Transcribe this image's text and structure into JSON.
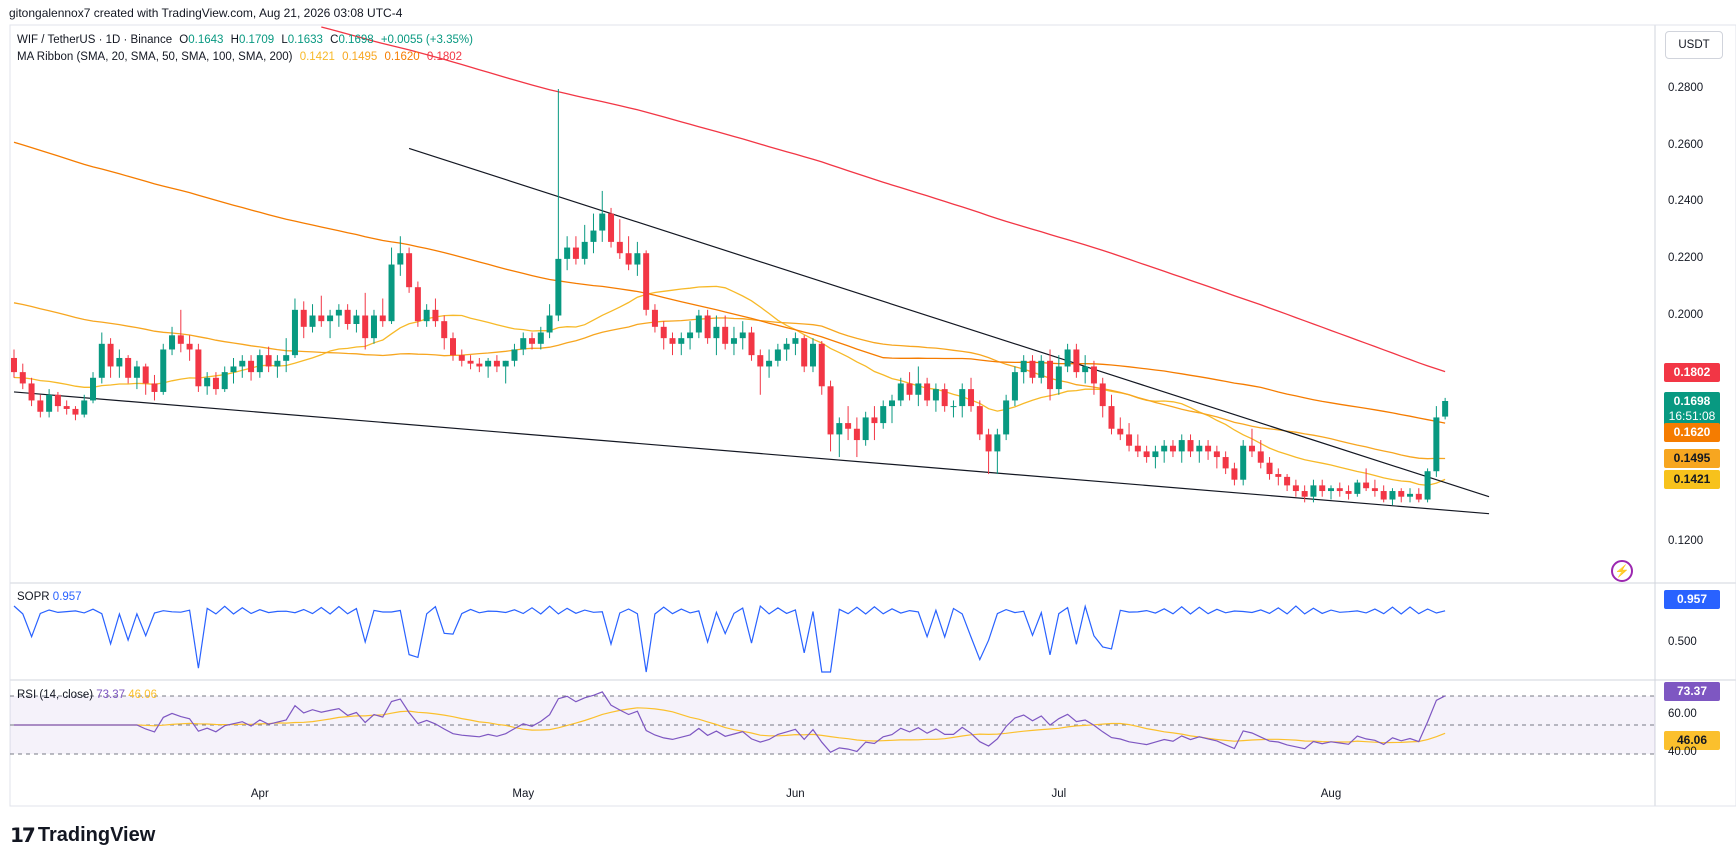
{
  "header": {
    "credit": "gitongalennox7 created with TradingView.com, Aug 21, 2026 03:08 UTC-4"
  },
  "legend": {
    "symbol": "WIF / TetherUS · 1D · Binance",
    "o_label": "O",
    "o_value": "0.1643",
    "h_label": "H",
    "h_value": "0.1709",
    "l_label": "L",
    "l_value": "0.1633",
    "c_label": "C",
    "c_value": "0.1698",
    "change": "+0.0055 (+3.35%)",
    "ma_title": "MA Ribbon (SMA, 20, SMA, 50, SMA, 100, SMA, 200)",
    "ma20": "0.1421",
    "ma50": "0.1495",
    "ma100": "0.1620",
    "ma200": "0.1802"
  },
  "currency_button": "USDT",
  "price_tags": {
    "ma200": "0.1802",
    "last": "0.1698",
    "countdown": "16:51:08",
    "ma100": "0.1620",
    "ma50": "0.1495",
    "ma20": "0.1421"
  },
  "sopr_pane": {
    "title": "SOPR",
    "value": "0.957",
    "tag": "0.957",
    "axis": "0.500"
  },
  "rsi_pane": {
    "title": "RSI (14, close)",
    "value": "73.37",
    "ma_value": "46.06",
    "tag": "73.37",
    "ma_tag": "46.06",
    "axis_60": "60.00",
    "axis_40": "40.00"
  },
  "footer": {
    "brand": "TradingView"
  },
  "colors": {
    "up": "#089981",
    "down": "#f23645",
    "ma20": "#f7b928",
    "ma50": "#f7a620",
    "ma100": "#f57c00",
    "ma200": "#f23645",
    "sopr": "#2962ff",
    "rsi": "#7e57c2",
    "rsi_ma": "#fbc02d"
  },
  "chart_data": [
    {
      "type": "line",
      "title": "WIF / TetherUS · 1D · Binance",
      "y_ticks": [
        "0.2800",
        "0.2600",
        "0.2400",
        "0.2200",
        "0.2000",
        "0.1200"
      ],
      "x_ticks": [
        "Apr",
        "May",
        "Jun",
        "Jul",
        "Aug"
      ],
      "ylim": [
        0.105,
        0.295
      ],
      "candles_ohlc_daily_from_mar4": [
        [
          0.185,
          0.188,
          0.178,
          0.18
        ],
        [
          0.18,
          0.183,
          0.174,
          0.176
        ],
        [
          0.176,
          0.178,
          0.168,
          0.17
        ],
        [
          0.17,
          0.172,
          0.164,
          0.166
        ],
        [
          0.166,
          0.174,
          0.164,
          0.172
        ],
        [
          0.172,
          0.173,
          0.166,
          0.168
        ],
        [
          0.168,
          0.17,
          0.165,
          0.167
        ],
        [
          0.167,
          0.168,
          0.163,
          0.165
        ],
        [
          0.165,
          0.172,
          0.164,
          0.17
        ],
        [
          0.17,
          0.18,
          0.169,
          0.178
        ],
        [
          0.178,
          0.194,
          0.176,
          0.19
        ],
        [
          0.19,
          0.192,
          0.178,
          0.182
        ],
        [
          0.182,
          0.188,
          0.178,
          0.185
        ],
        [
          0.185,
          0.186,
          0.176,
          0.178
        ],
        [
          0.178,
          0.184,
          0.174,
          0.182
        ],
        [
          0.182,
          0.183,
          0.172,
          0.176
        ],
        [
          0.176,
          0.179,
          0.17,
          0.173
        ],
        [
          0.173,
          0.19,
          0.172,
          0.188
        ],
        [
          0.188,
          0.196,
          0.186,
          0.193
        ],
        [
          0.193,
          0.202,
          0.187,
          0.19
        ],
        [
          0.19,
          0.193,
          0.184,
          0.188
        ],
        [
          0.188,
          0.19,
          0.173,
          0.175
        ],
        [
          0.175,
          0.18,
          0.172,
          0.178
        ],
        [
          0.178,
          0.18,
          0.172,
          0.174
        ],
        [
          0.174,
          0.182,
          0.173,
          0.18
        ],
        [
          0.18,
          0.185,
          0.176,
          0.182
        ],
        [
          0.182,
          0.186,
          0.178,
          0.184
        ],
        [
          0.184,
          0.186,
          0.177,
          0.18
        ],
        [
          0.18,
          0.188,
          0.178,
          0.186
        ],
        [
          0.186,
          0.189,
          0.18,
          0.182
        ],
        [
          0.182,
          0.186,
          0.178,
          0.184
        ],
        [
          0.184,
          0.192,
          0.18,
          0.186
        ],
        [
          0.186,
          0.206,
          0.185,
          0.202
        ],
        [
          0.202,
          0.205,
          0.192,
          0.196
        ],
        [
          0.196,
          0.204,
          0.194,
          0.2
        ],
        [
          0.2,
          0.207,
          0.196,
          0.198
        ],
        [
          0.198,
          0.202,
          0.192,
          0.2
        ],
        [
          0.2,
          0.204,
          0.196,
          0.202
        ],
        [
          0.202,
          0.204,
          0.195,
          0.197
        ],
        [
          0.197,
          0.202,
          0.194,
          0.2
        ],
        [
          0.2,
          0.208,
          0.188,
          0.192
        ],
        [
          0.192,
          0.202,
          0.19,
          0.2
        ],
        [
          0.2,
          0.206,
          0.196,
          0.198
        ],
        [
          0.198,
          0.224,
          0.197,
          0.218
        ],
        [
          0.218,
          0.228,
          0.214,
          0.222
        ],
        [
          0.222,
          0.224,
          0.208,
          0.21
        ],
        [
          0.21,
          0.212,
          0.196,
          0.198
        ],
        [
          0.198,
          0.204,
          0.196,
          0.202
        ],
        [
          0.202,
          0.206,
          0.196,
          0.198
        ],
        [
          0.198,
          0.2,
          0.188,
          0.192
        ],
        [
          0.192,
          0.194,
          0.184,
          0.186
        ],
        [
          0.186,
          0.188,
          0.182,
          0.184
        ],
        [
          0.184,
          0.186,
          0.181,
          0.183
        ],
        [
          0.183,
          0.185,
          0.18,
          0.182
        ],
        [
          0.182,
          0.185,
          0.178,
          0.184
        ],
        [
          0.184,
          0.186,
          0.18,
          0.182
        ],
        [
          0.182,
          0.184,
          0.176,
          0.184
        ],
        [
          0.184,
          0.19,
          0.182,
          0.188
        ],
        [
          0.188,
          0.194,
          0.186,
          0.192
        ],
        [
          0.192,
          0.194,
          0.188,
          0.19
        ],
        [
          0.19,
          0.196,
          0.188,
          0.194
        ],
        [
          0.194,
          0.204,
          0.192,
          0.2
        ],
        [
          0.2,
          0.28,
          0.198,
          0.22
        ],
        [
          0.22,
          0.228,
          0.216,
          0.224
        ],
        [
          0.224,
          0.228,
          0.218,
          0.22
        ],
        [
          0.22,
          0.232,
          0.218,
          0.226
        ],
        [
          0.226,
          0.236,
          0.222,
          0.23
        ],
        [
          0.23,
          0.244,
          0.226,
          0.236
        ],
        [
          0.236,
          0.238,
          0.224,
          0.226
        ],
        [
          0.226,
          0.234,
          0.22,
          0.222
        ],
        [
          0.222,
          0.228,
          0.216,
          0.218
        ],
        [
          0.218,
          0.226,
          0.214,
          0.222
        ],
        [
          0.222,
          0.223,
          0.2,
          0.202
        ],
        [
          0.202,
          0.204,
          0.194,
          0.196
        ],
        [
          0.196,
          0.198,
          0.188,
          0.192
        ],
        [
          0.192,
          0.194,
          0.186,
          0.19
        ],
        [
          0.19,
          0.194,
          0.186,
          0.192
        ],
        [
          0.192,
          0.198,
          0.188,
          0.194
        ],
        [
          0.194,
          0.202,
          0.192,
          0.2
        ],
        [
          0.2,
          0.202,
          0.19,
          0.192
        ],
        [
          0.192,
          0.2,
          0.186,
          0.196
        ],
        [
          0.196,
          0.2,
          0.188,
          0.19
        ],
        [
          0.19,
          0.196,
          0.186,
          0.192
        ],
        [
          0.192,
          0.198,
          0.188,
          0.194
        ],
        [
          0.194,
          0.196,
          0.184,
          0.186
        ],
        [
          0.186,
          0.188,
          0.172,
          0.182
        ],
        [
          0.182,
          0.188,
          0.178,
          0.184
        ],
        [
          0.184,
          0.19,
          0.182,
          0.188
        ],
        [
          0.188,
          0.192,
          0.184,
          0.19
        ],
        [
          0.19,
          0.194,
          0.186,
          0.192
        ],
        [
          0.192,
          0.193,
          0.18,
          0.182
        ],
        [
          0.182,
          0.192,
          0.18,
          0.19
        ],
        [
          0.19,
          0.191,
          0.172,
          0.175
        ],
        [
          0.175,
          0.177,
          0.152,
          0.158
        ],
        [
          0.158,
          0.164,
          0.15,
          0.162
        ],
        [
          0.162,
          0.168,
          0.156,
          0.16
        ],
        [
          0.16,
          0.164,
          0.15,
          0.156
        ],
        [
          0.156,
          0.166,
          0.154,
          0.164
        ],
        [
          0.164,
          0.168,
          0.156,
          0.162
        ],
        [
          0.162,
          0.17,
          0.16,
          0.168
        ],
        [
          0.168,
          0.172,
          0.162,
          0.17
        ],
        [
          0.17,
          0.178,
          0.168,
          0.176
        ],
        [
          0.176,
          0.18,
          0.17,
          0.172
        ],
        [
          0.172,
          0.182,
          0.168,
          0.176
        ],
        [
          0.176,
          0.178,
          0.168,
          0.17
        ],
        [
          0.17,
          0.176,
          0.166,
          0.174
        ],
        [
          0.174,
          0.176,
          0.166,
          0.168
        ],
        [
          0.168,
          0.17,
          0.164,
          0.168
        ],
        [
          0.168,
          0.176,
          0.164,
          0.174
        ],
        [
          0.174,
          0.178,
          0.166,
          0.168
        ],
        [
          0.168,
          0.17,
          0.156,
          0.158
        ],
        [
          0.158,
          0.16,
          0.144,
          0.152
        ],
        [
          0.152,
          0.16,
          0.144,
          0.158
        ],
        [
          0.158,
          0.172,
          0.156,
          0.17
        ],
        [
          0.17,
          0.182,
          0.168,
          0.18
        ],
        [
          0.18,
          0.186,
          0.176,
          0.184
        ],
        [
          0.184,
          0.186,
          0.176,
          0.178
        ],
        [
          0.178,
          0.186,
          0.176,
          0.184
        ],
        [
          0.184,
          0.188,
          0.17,
          0.174
        ],
        [
          0.174,
          0.186,
          0.172,
          0.182
        ],
        [
          0.182,
          0.19,
          0.18,
          0.188
        ],
        [
          0.188,
          0.19,
          0.178,
          0.18
        ],
        [
          0.18,
          0.186,
          0.176,
          0.182
        ],
        [
          0.182,
          0.184,
          0.172,
          0.176
        ],
        [
          0.176,
          0.178,
          0.164,
          0.168
        ],
        [
          0.168,
          0.172,
          0.158,
          0.16
        ],
        [
          0.16,
          0.164,
          0.156,
          0.158
        ],
        [
          0.158,
          0.162,
          0.152,
          0.154
        ],
        [
          0.154,
          0.158,
          0.15,
          0.152
        ],
        [
          0.152,
          0.154,
          0.148,
          0.15
        ],
        [
          0.15,
          0.154,
          0.146,
          0.152
        ],
        [
          0.152,
          0.156,
          0.148,
          0.154
        ],
        [
          0.154,
          0.156,
          0.15,
          0.152
        ],
        [
          0.152,
          0.158,
          0.148,
          0.156
        ],
        [
          0.156,
          0.158,
          0.15,
          0.152
        ],
        [
          0.152,
          0.156,
          0.148,
          0.154
        ],
        [
          0.154,
          0.156,
          0.149,
          0.152
        ],
        [
          0.152,
          0.154,
          0.146,
          0.15
        ],
        [
          0.15,
          0.152,
          0.144,
          0.146
        ],
        [
          0.146,
          0.148,
          0.14,
          0.142
        ],
        [
          0.142,
          0.156,
          0.14,
          0.154
        ],
        [
          0.154,
          0.16,
          0.15,
          0.152
        ],
        [
          0.152,
          0.156,
          0.146,
          0.148
        ],
        [
          0.148,
          0.15,
          0.142,
          0.144
        ],
        [
          0.144,
          0.146,
          0.14,
          0.143
        ],
        [
          0.143,
          0.144,
          0.138,
          0.14
        ],
        [
          0.14,
          0.142,
          0.136,
          0.138
        ],
        [
          0.138,
          0.14,
          0.134,
          0.136
        ],
        [
          0.136,
          0.142,
          0.134,
          0.14
        ],
        [
          0.14,
          0.142,
          0.136,
          0.138
        ],
        [
          0.138,
          0.14,
          0.135,
          0.139
        ],
        [
          0.139,
          0.141,
          0.136,
          0.138
        ],
        [
          0.138,
          0.14,
          0.135,
          0.137
        ],
        [
          0.137,
          0.142,
          0.136,
          0.141
        ],
        [
          0.141,
          0.146,
          0.138,
          0.139
        ],
        [
          0.139,
          0.142,
          0.136,
          0.138
        ],
        [
          0.138,
          0.14,
          0.134,
          0.135
        ],
        [
          0.135,
          0.139,
          0.133,
          0.138
        ],
        [
          0.138,
          0.139,
          0.134,
          0.136
        ],
        [
          0.136,
          0.139,
          0.134,
          0.137
        ],
        [
          0.137,
          0.139,
          0.134,
          0.135
        ],
        [
          0.135,
          0.146,
          0.134,
          0.145
        ],
        [
          0.145,
          0.168,
          0.143,
          0.164
        ],
        [
          0.1643,
          0.1709,
          0.1633,
          0.1698
        ]
      ],
      "series": [
        {
          "name": "SMA 20",
          "last": 0.1421
        },
        {
          "name": "SMA 50",
          "last": 0.1495
        },
        {
          "name": "SMA 100",
          "last": 0.162
        },
        {
          "name": "SMA 200",
          "last": 0.1802
        }
      ],
      "trendlines": [
        {
          "from": [
            "Mar 4",
            0.173
          ],
          "to": [
            "Aug 19",
            0.13
          ]
        },
        {
          "from": [
            "Apr 18",
            0.259
          ],
          "to": [
            "Aug 19",
            0.136
          ]
        }
      ]
    },
    {
      "type": "line",
      "title": "SOPR",
      "last": 0.957,
      "y_ticks": [
        "0.500"
      ]
    },
    {
      "type": "line",
      "title": "RSI (14, close)",
      "series": [
        {
          "name": "RSI",
          "last": 73.37
        },
        {
          "name": "RSI MA",
          "last": 46.06
        }
      ],
      "y_ticks": [
        "60.00",
        "40.00"
      ],
      "bands": [
        70,
        50,
        30
      ]
    }
  ]
}
